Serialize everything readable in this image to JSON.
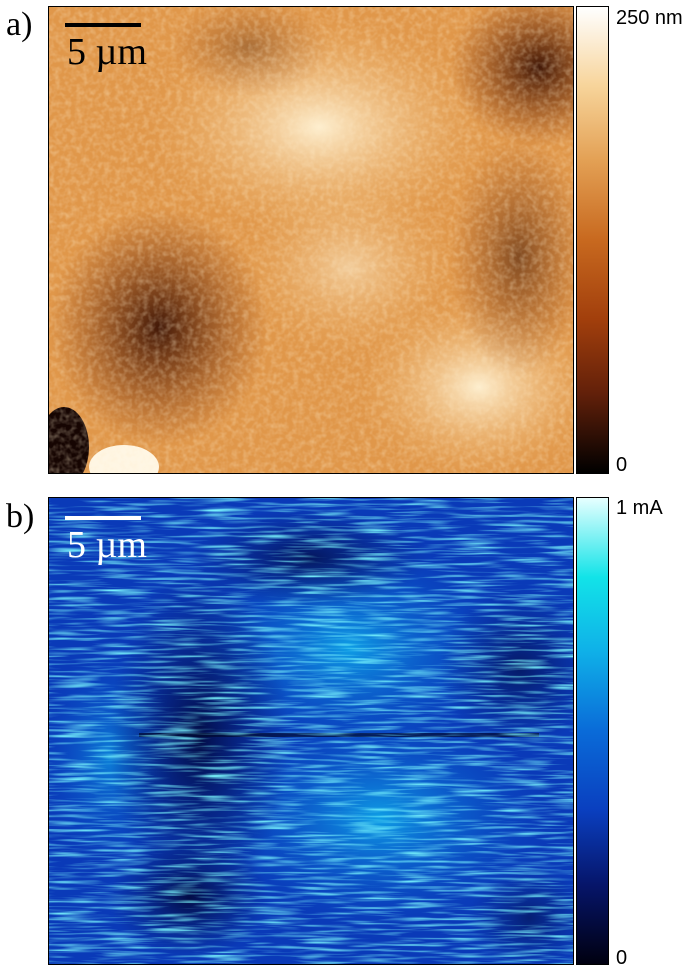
{
  "panels": [
    {
      "label": "a)",
      "scale_bar": "5 µm",
      "colorbar": {
        "max_label": "250 nm",
        "min_label": "0"
      },
      "colormap": [
        "#000000",
        "#62200a",
        "#a23f0c",
        "#c8691f",
        "#e3a054",
        "#f7d49a",
        "#ffffff"
      ]
    },
    {
      "label": "b)",
      "scale_bar": "5 µm",
      "colorbar": {
        "max_label": "1 mA",
        "min_label": "0"
      },
      "colormap": [
        "#000010",
        "#06156a",
        "#0a3fbf",
        "#0a6bd8",
        "#0fb0e8",
        "#12e3e8",
        "#e6ffff"
      ]
    }
  ]
}
